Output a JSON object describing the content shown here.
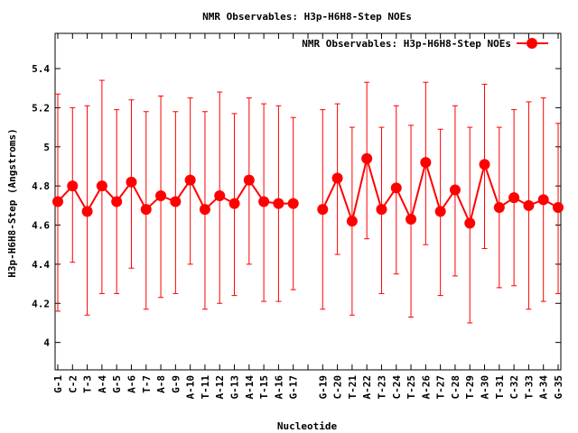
{
  "chart_data": {
    "type": "line",
    "title": "NMR Observables: H3p-H6H8-Step NOEs",
    "xlabel": "Nucleotide",
    "ylabel": "H3p-H6H8-Step (Angstroms)",
    "ylim": [
      3.86,
      5.58
    ],
    "yticks": [
      "4",
      "4.2",
      "4.4",
      "4.6",
      "4.8",
      "5",
      "5.2",
      "5.4"
    ],
    "ytick_values": [
      4.0,
      4.2,
      4.4,
      4.6,
      4.8,
      5.0,
      5.2,
      5.4
    ],
    "grid": false,
    "legend_position": "top-right",
    "color": "#ff0000",
    "categories": [
      "G-1",
      "C-2",
      "T-3",
      "A-4",
      "G-5",
      "A-6",
      "T-7",
      "A-8",
      "G-9",
      "A-10",
      "T-11",
      "A-12",
      "G-13",
      "A-14",
      "T-15",
      "A-16",
      "G-17",
      "",
      "G-19",
      "C-20",
      "T-21",
      "A-22",
      "T-23",
      "C-24",
      "T-25",
      "A-26",
      "T-27",
      "C-28",
      "T-29",
      "A-30",
      "T-31",
      "C-32",
      "T-33",
      "A-34",
      "G-35"
    ],
    "series": [
      {
        "name": "NMR Observables: H3p-H6H8-Step NOEs",
        "values": [
          4.72,
          4.8,
          4.67,
          4.8,
          4.72,
          4.82,
          4.68,
          4.75,
          4.72,
          4.83,
          4.68,
          4.75,
          4.71,
          4.83,
          4.72,
          4.71,
          4.71,
          null,
          4.68,
          4.84,
          4.62,
          4.94,
          4.68,
          4.79,
          4.63,
          4.92,
          4.67,
          4.78,
          4.61,
          4.91,
          4.69,
          4.74,
          4.7,
          4.73,
          4.69
        ],
        "err_low": [
          4.16,
          4.41,
          4.14,
          4.25,
          4.25,
          4.38,
          4.17,
          4.23,
          4.25,
          4.4,
          4.17,
          4.2,
          4.24,
          4.4,
          4.21,
          4.21,
          4.27,
          null,
          4.17,
          4.45,
          4.14,
          4.53,
          4.25,
          4.35,
          4.13,
          4.5,
          4.24,
          4.34,
          4.1,
          4.48,
          4.28,
          4.29,
          4.17,
          4.21,
          4.25
        ],
        "err_high": [
          5.27,
          5.2,
          5.21,
          5.34,
          5.19,
          5.24,
          5.18,
          5.26,
          5.18,
          5.25,
          5.18,
          5.28,
          5.17,
          5.25,
          5.22,
          5.21,
          5.15,
          null,
          5.19,
          5.22,
          5.1,
          5.33,
          5.1,
          5.21,
          5.11,
          5.33,
          5.09,
          5.21,
          5.1,
          5.32,
          5.1,
          5.19,
          5.23,
          5.25,
          5.12
        ]
      }
    ]
  }
}
